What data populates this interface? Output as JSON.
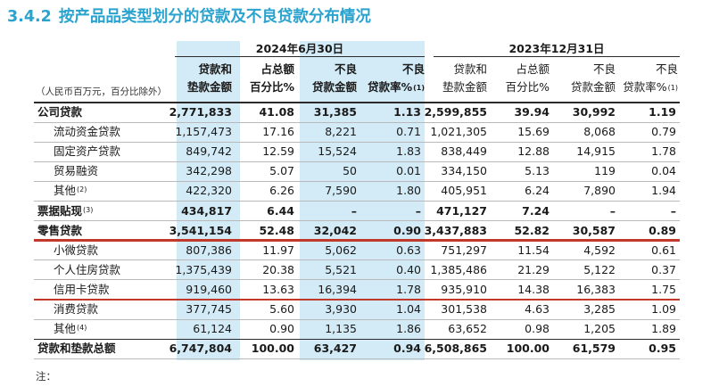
{
  "section": {
    "number": "3.4.2",
    "title": "按产品品类型划分的贷款及不良贷款分布情况"
  },
  "periods": {
    "current": "2024年6月30日",
    "prior": "2023年12月31日"
  },
  "unit_note": "（人民币百万元，百分比除外）",
  "columns": {
    "c1": {
      "line1": "贷款和",
      "line2": "垫款金额"
    },
    "c2": {
      "line1": "占总额",
      "line2": "百分比%"
    },
    "c3": {
      "line1": "不良",
      "line2": "贷款金额"
    },
    "c4": {
      "line1": "不良",
      "line2": "贷款率%",
      "sup": "(1)"
    },
    "p1": {
      "line1": "贷款和",
      "line2": "垫款金额"
    },
    "p2": {
      "line1": "占总额",
      "line2": "百分比%"
    },
    "p3": {
      "line1": "不良",
      "line2": "贷款金额"
    },
    "p4": {
      "line1": "不良",
      "line2": "贷款率%",
      "sup": "(1)"
    }
  },
  "rows": [
    {
      "label": "公司贷款",
      "sup": "",
      "bold": true,
      "indent": false,
      "values": [
        "2,771,833",
        "41.08",
        "31,385",
        "1.13",
        "2,599,855",
        "39.94",
        "30,992",
        "1.19"
      ]
    },
    {
      "label": "流动资金贷款",
      "sup": "",
      "bold": false,
      "indent": true,
      "values": [
        "1,157,473",
        "17.16",
        "8,221",
        "0.71",
        "1,021,305",
        "15.69",
        "8,068",
        "0.79"
      ]
    },
    {
      "label": "固定资产贷款",
      "sup": "",
      "bold": false,
      "indent": true,
      "values": [
        "849,742",
        "12.59",
        "15,524",
        "1.83",
        "838,449",
        "12.88",
        "14,915",
        "1.78"
      ]
    },
    {
      "label": "贸易融资",
      "sup": "",
      "bold": false,
      "indent": true,
      "values": [
        "342,298",
        "5.07",
        "50",
        "0.01",
        "334,150",
        "5.13",
        "119",
        "0.04"
      ]
    },
    {
      "label": "其他",
      "sup": "(2)",
      "bold": false,
      "indent": true,
      "values": [
        "422,320",
        "6.26",
        "7,590",
        "1.80",
        "405,951",
        "6.24",
        "7,890",
        "1.94"
      ]
    },
    {
      "label": "票据贴现",
      "sup": "(3)",
      "bold": true,
      "indent": false,
      "values": [
        "434,817",
        "6.44",
        "–",
        "–",
        "471,127",
        "7.24",
        "–",
        "–"
      ]
    },
    {
      "label": "零售贷款",
      "sup": "",
      "bold": true,
      "indent": false,
      "values": [
        "3,541,154",
        "52.48",
        "32,042",
        "0.90",
        "3,437,883",
        "52.82",
        "30,587",
        "0.89"
      ]
    },
    {
      "label": "小微贷款",
      "sup": "",
      "bold": false,
      "indent": true,
      "values": [
        "807,386",
        "11.97",
        "5,062",
        "0.63",
        "751,297",
        "11.54",
        "4,592",
        "0.61"
      ]
    },
    {
      "label": "个人住房贷款",
      "sup": "",
      "bold": false,
      "indent": true,
      "values": [
        "1,375,439",
        "20.38",
        "5,521",
        "0.40",
        "1,385,486",
        "21.29",
        "5,122",
        "0.37"
      ]
    },
    {
      "label": "信用卡贷款",
      "sup": "",
      "bold": false,
      "indent": true,
      "values": [
        "919,460",
        "13.63",
        "16,394",
        "1.78",
        "935,910",
        "14.38",
        "16,383",
        "1.75"
      ]
    },
    {
      "label": "消费贷款",
      "sup": "",
      "bold": false,
      "indent": true,
      "values": [
        "377,745",
        "5.60",
        "3,930",
        "1.04",
        "301,538",
        "4.63",
        "3,285",
        "1.09"
      ]
    },
    {
      "label": "其他",
      "sup": "(4)",
      "bold": false,
      "indent": true,
      "values": [
        "61,124",
        "0.90",
        "1,135",
        "1.86",
        "63,652",
        "0.98",
        "1,205",
        "1.89"
      ]
    },
    {
      "label": "贷款和垫款总额",
      "sup": "",
      "bold": true,
      "indent": false,
      "values": [
        "6,747,804",
        "100.00",
        "63,427",
        "0.94",
        "6,508,865",
        "100.00",
        "61,579",
        "0.95"
      ]
    }
  ],
  "footnote": "注："
}
